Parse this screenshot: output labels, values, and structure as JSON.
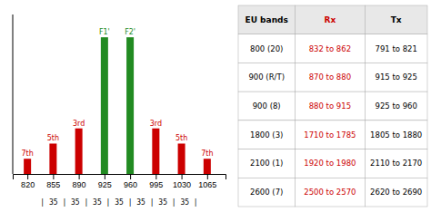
{
  "chart_data": [
    {
      "type": "bar",
      "x": [
        820,
        855,
        890,
        925,
        960,
        995,
        1030,
        1065
      ],
      "values": [
        1.0,
        2.0,
        3.0,
        9.0,
        9.0,
        3.0,
        2.0,
        1.0
      ],
      "labels": [
        "7th",
        "5th",
        "3rd",
        "F1'",
        "F2'",
        "3rd",
        "5th",
        "7th"
      ],
      "colors": [
        "#cc0000",
        "#cc0000",
        "#cc0000",
        "#228B22",
        "#228B22",
        "#cc0000",
        "#cc0000",
        "#cc0000"
      ],
      "xlim": [
        800,
        1090
      ],
      "xticks": [
        820,
        855,
        890,
        925,
        960,
        995,
        1030,
        1065
      ],
      "ylim": [
        0,
        10.5
      ],
      "tick_labels": "x",
      "annotation": "| 35 | 35 | 35 | 35 | 35 | 35 | 35 |"
    },
    {
      "type": "table",
      "columns": [
        "EU bands",
        "Rx",
        "Tx"
      ],
      "colors": [
        "#000000",
        "#cc0000",
        "#000000"
      ],
      "rows": [
        [
          "800 (20)",
          "832 to 862",
          "791 to 821"
        ],
        [
          "900 (R/T)",
          "870 to 880",
          "915 to 925"
        ],
        [
          "900 (8)",
          "880 to 915",
          "925 to 960"
        ],
        [
          "1800 (3)",
          "1710 to 1785",
          "1805 to 1880"
        ],
        [
          "2100 (1)",
          "1920 to 1980",
          "2110 to 2170"
        ],
        [
          "2600 (7)",
          "2500 to 2570",
          "2620 to 2690"
        ]
      ]
    }
  ]
}
